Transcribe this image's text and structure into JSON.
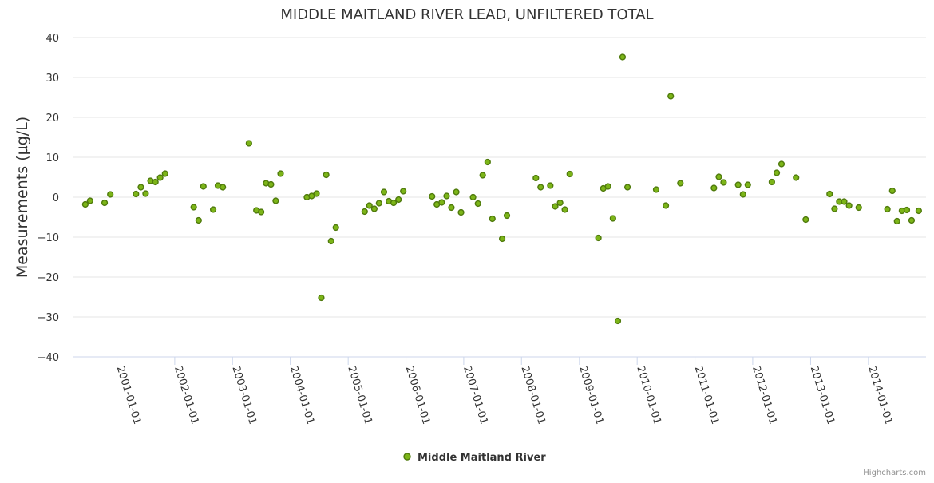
{
  "chart_data": {
    "type": "scatter",
    "title": "MIDDLE MAITLAND RIVER LEAD, UNFILTERED TOTAL",
    "xlabel": "",
    "ylabel": "Measurements (µg/L)",
    "ylim": [
      -40,
      40
    ],
    "yticks": [
      40,
      30,
      20,
      10,
      0,
      -10,
      -20,
      -30,
      -40
    ],
    "ytick_labels": [
      "40",
      "30",
      "20",
      "10",
      "0",
      "−10",
      "−20",
      "−30",
      "−40"
    ],
    "xticks": [
      "2001-01-01",
      "2002-01-01",
      "2003-01-01",
      "2004-01-01",
      "2005-01-01",
      "2006-01-01",
      "2007-01-01",
      "2008-01-01",
      "2009-01-01",
      "2010-01-01",
      "2011-01-01",
      "2012-01-01",
      "2013-01-01",
      "2014-01-01"
    ],
    "grid": true,
    "legend_position": "bottom-center",
    "series": [
      {
        "name": "Middle Maitland River",
        "color": "#7cb518",
        "edge_color": "#4f7a0c",
        "points": [
          {
            "x": "2000-06-15",
            "y": -1.8
          },
          {
            "x": "2000-07-15",
            "y": -0.9
          },
          {
            "x": "2000-10-15",
            "y": -1.4
          },
          {
            "x": "2000-11-20",
            "y": 0.7
          },
          {
            "x": "2001-05-01",
            "y": 0.8
          },
          {
            "x": "2001-06-01",
            "y": 2.5
          },
          {
            "x": "2001-07-01",
            "y": 0.9
          },
          {
            "x": "2001-08-01",
            "y": 4.1
          },
          {
            "x": "2001-09-01",
            "y": 3.8
          },
          {
            "x": "2001-10-01",
            "y": 4.9
          },
          {
            "x": "2001-11-01",
            "y": 5.9
          },
          {
            "x": "2002-05-01",
            "y": -2.5
          },
          {
            "x": "2002-06-01",
            "y": -5.8
          },
          {
            "x": "2002-07-01",
            "y": 2.7
          },
          {
            "x": "2002-09-01",
            "y": -3.1
          },
          {
            "x": "2002-10-01",
            "y": 2.9
          },
          {
            "x": "2002-11-01",
            "y": 2.5
          },
          {
            "x": "2003-04-15",
            "y": 13.5
          },
          {
            "x": "2003-06-01",
            "y": -3.3
          },
          {
            "x": "2003-07-01",
            "y": -3.7
          },
          {
            "x": "2003-08-01",
            "y": 3.5
          },
          {
            "x": "2003-09-01",
            "y": 3.2
          },
          {
            "x": "2003-10-01",
            "y": -0.9
          },
          {
            "x": "2003-11-01",
            "y": 5.9
          },
          {
            "x": "2004-04-15",
            "y": 0.0
          },
          {
            "x": "2004-05-15",
            "y": 0.3
          },
          {
            "x": "2004-06-15",
            "y": 0.9
          },
          {
            "x": "2004-07-15",
            "y": -25.2
          },
          {
            "x": "2004-08-15",
            "y": 5.6
          },
          {
            "x": "2004-09-15",
            "y": -11.0
          },
          {
            "x": "2004-10-15",
            "y": -7.6
          },
          {
            "x": "2005-04-15",
            "y": -3.6
          },
          {
            "x": "2005-05-15",
            "y": -2.1
          },
          {
            "x": "2005-06-15",
            "y": -2.9
          },
          {
            "x": "2005-07-15",
            "y": -1.5
          },
          {
            "x": "2005-08-15",
            "y": 1.3
          },
          {
            "x": "2005-09-15",
            "y": -1.0
          },
          {
            "x": "2005-10-15",
            "y": -1.4
          },
          {
            "x": "2005-11-15",
            "y": -0.6
          },
          {
            "x": "2005-12-15",
            "y": 1.5
          },
          {
            "x": "2006-06-15",
            "y": 0.2
          },
          {
            "x": "2006-07-15",
            "y": -1.8
          },
          {
            "x": "2006-08-15",
            "y": -1.3
          },
          {
            "x": "2006-09-15",
            "y": 0.3
          },
          {
            "x": "2006-10-15",
            "y": -2.6
          },
          {
            "x": "2006-11-15",
            "y": 1.3
          },
          {
            "x": "2006-12-15",
            "y": -3.8
          },
          {
            "x": "2007-03-01",
            "y": 0.0
          },
          {
            "x": "2007-04-01",
            "y": -1.6
          },
          {
            "x": "2007-05-01",
            "y": 5.5
          },
          {
            "x": "2007-06-01",
            "y": 8.8
          },
          {
            "x": "2007-07-01",
            "y": -5.4
          },
          {
            "x": "2007-09-01",
            "y": -10.4
          },
          {
            "x": "2007-10-01",
            "y": -4.6
          },
          {
            "x": "2008-04-01",
            "y": 4.8
          },
          {
            "x": "2008-05-01",
            "y": 2.5
          },
          {
            "x": "2008-07-01",
            "y": 2.9
          },
          {
            "x": "2008-08-01",
            "y": -2.3
          },
          {
            "x": "2008-09-01",
            "y": -1.4
          },
          {
            "x": "2008-10-01",
            "y": -3.1
          },
          {
            "x": "2008-11-01",
            "y": 5.8
          },
          {
            "x": "2009-05-01",
            "y": -10.2
          },
          {
            "x": "2009-06-01",
            "y": 2.2
          },
          {
            "x": "2009-07-01",
            "y": 2.7
          },
          {
            "x": "2009-08-01",
            "y": -5.3
          },
          {
            "x": "2009-09-01",
            "y": -31.0
          },
          {
            "x": "2009-10-01",
            "y": 35.1
          },
          {
            "x": "2009-11-01",
            "y": 2.5
          },
          {
            "x": "2010-05-01",
            "y": 1.9
          },
          {
            "x": "2010-07-01",
            "y": -2.1
          },
          {
            "x": "2010-08-01",
            "y": 25.3
          },
          {
            "x": "2010-10-01",
            "y": 3.5
          },
          {
            "x": "2011-05-01",
            "y": 2.3
          },
          {
            "x": "2011-06-01",
            "y": 5.1
          },
          {
            "x": "2011-07-01",
            "y": 3.7
          },
          {
            "x": "2011-10-01",
            "y": 3.1
          },
          {
            "x": "2011-11-01",
            "y": 0.7
          },
          {
            "x": "2011-12-01",
            "y": 3.1
          },
          {
            "x": "2012-05-01",
            "y": 3.8
          },
          {
            "x": "2012-06-01",
            "y": 6.1
          },
          {
            "x": "2012-07-01",
            "y": 8.3
          },
          {
            "x": "2012-10-01",
            "y": 4.9
          },
          {
            "x": "2012-12-01",
            "y": -5.6
          },
          {
            "x": "2013-05-01",
            "y": 0.8
          },
          {
            "x": "2013-06-01",
            "y": -2.9
          },
          {
            "x": "2013-07-01",
            "y": -1.1
          },
          {
            "x": "2013-08-01",
            "y": -1.1
          },
          {
            "x": "2013-09-01",
            "y": -2.1
          },
          {
            "x": "2013-11-01",
            "y": -2.6
          },
          {
            "x": "2014-05-01",
            "y": -3.0
          },
          {
            "x": "2014-06-01",
            "y": 1.6
          },
          {
            "x": "2014-07-01",
            "y": -6.0
          },
          {
            "x": "2014-08-01",
            "y": -3.4
          },
          {
            "x": "2014-09-01",
            "y": -3.2
          },
          {
            "x": "2014-10-01",
            "y": -5.8
          },
          {
            "x": "2014-11-15",
            "y": -3.4
          }
        ]
      }
    ]
  },
  "credits": "Highcharts.com"
}
